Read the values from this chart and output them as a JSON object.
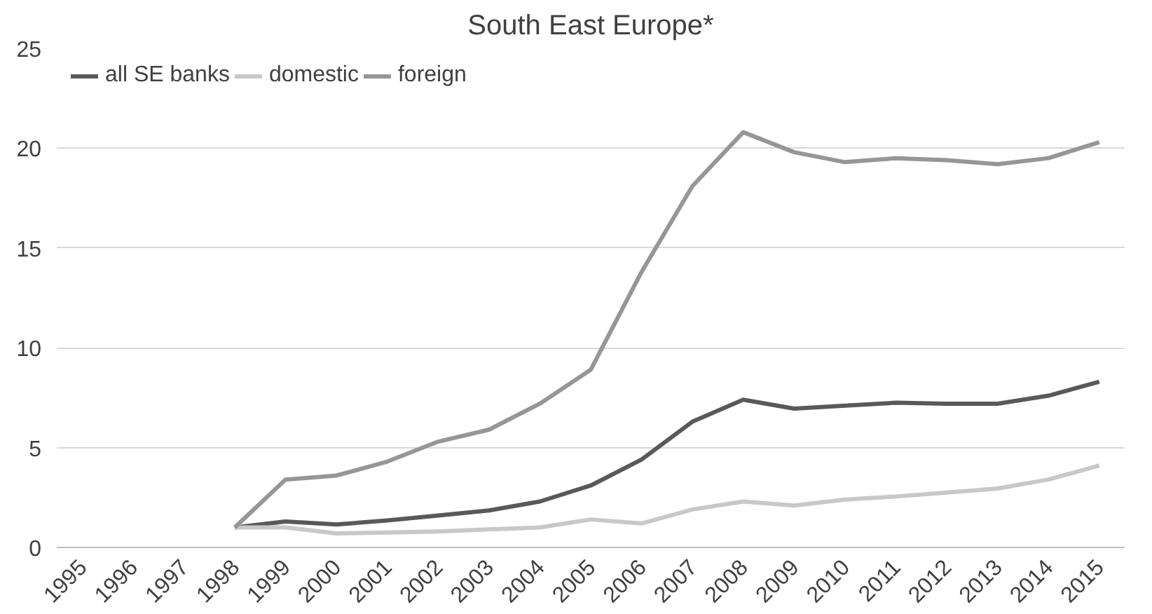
{
  "chart_data": {
    "type": "line",
    "title": "South East Europe*",
    "categories": [
      "1995",
      "1996",
      "1997",
      "1998",
      "1999",
      "2000",
      "2001",
      "2002",
      "2003",
      "2004",
      "2005",
      "2006",
      "2007",
      "2008",
      "2009",
      "2010",
      "2011",
      "2012",
      "2013",
      "2014",
      "2015"
    ],
    "series": [
      {
        "name": "all SE banks",
        "color": "#595959",
        "values": [
          null,
          null,
          null,
          1.0,
          1.3,
          1.15,
          1.35,
          1.6,
          1.85,
          2.3,
          3.1,
          4.4,
          6.3,
          7.4,
          6.95,
          7.1,
          7.25,
          7.2,
          7.2,
          7.6,
          8.3
        ]
      },
      {
        "name": "domestic",
        "color": "#c8c8c8",
        "values": [
          null,
          null,
          null,
          1.0,
          1.0,
          0.7,
          0.75,
          0.8,
          0.9,
          1.0,
          1.4,
          1.2,
          1.9,
          2.3,
          2.1,
          2.4,
          2.55,
          2.75,
          2.95,
          3.4,
          4.1
        ]
      },
      {
        "name": "foreign",
        "color": "#969696",
        "values": [
          null,
          null,
          null,
          1.0,
          3.4,
          3.6,
          4.3,
          5.3,
          5.9,
          7.2,
          8.9,
          13.8,
          18.1,
          20.8,
          19.8,
          19.3,
          19.5,
          19.4,
          19.2,
          19.5,
          20.3
        ]
      }
    ],
    "ylim": [
      0,
      25
    ],
    "yticks": [
      0,
      5,
      10,
      15,
      20,
      25
    ],
    "grid": "y",
    "legend": "top left",
    "line_style": "solid"
  }
}
